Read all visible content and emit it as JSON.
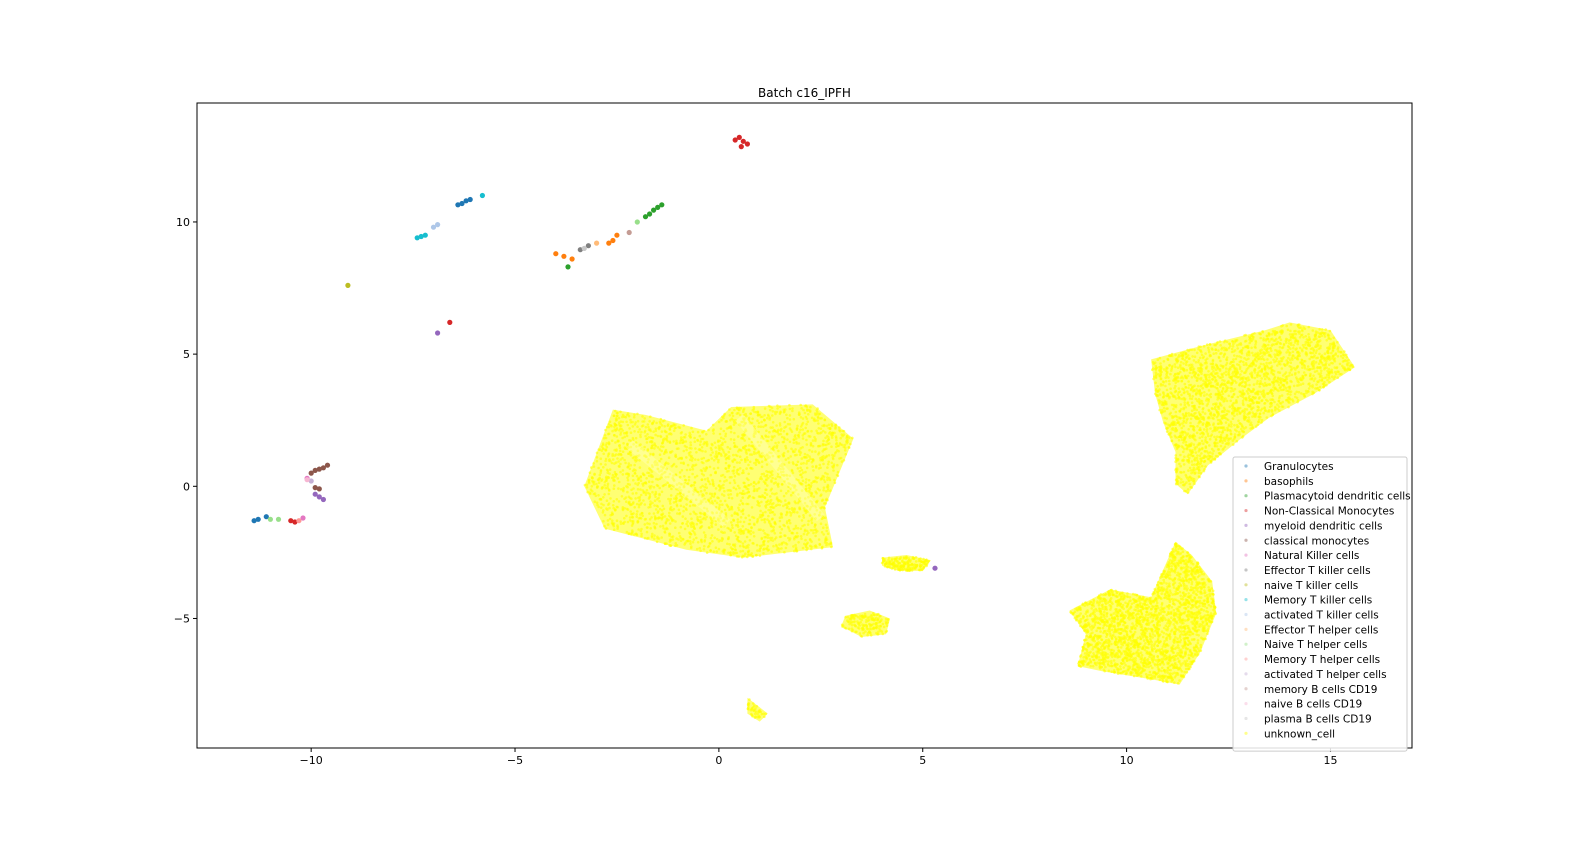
{
  "chart_data": {
    "type": "scatter",
    "title": "Batch c16_IPFH",
    "xlabel": "",
    "ylabel": "",
    "xlim": [
      -12.8,
      17.0
    ],
    "ylim": [
      -9.9,
      14.5
    ],
    "xticks": [
      -10,
      -5,
      0,
      5,
      10,
      15
    ],
    "xtick_labels": [
      "−10",
      "−5",
      "0",
      "5",
      "10",
      "15"
    ],
    "yticks": [
      -5,
      0,
      5,
      10
    ],
    "ytick_labels": [
      "−5",
      "0",
      "5",
      "10"
    ],
    "grid": false,
    "legend_position": "lower right",
    "series": [
      {
        "name": "Granulocytes",
        "color": "#1f77b4",
        "points": [
          [
            -11.4,
            -1.3
          ],
          [
            -11.3,
            -1.25
          ],
          [
            -11.1,
            -1.15
          ],
          [
            -6.4,
            10.65
          ],
          [
            -6.3,
            10.7
          ],
          [
            -6.2,
            10.8
          ],
          [
            -6.1,
            10.85
          ]
        ]
      },
      {
        "name": "basophils",
        "color": "#ff7f0e",
        "points": [
          [
            -4.0,
            8.8
          ],
          [
            -3.8,
            8.7
          ],
          [
            -3.6,
            8.6
          ],
          [
            -2.7,
            9.2
          ],
          [
            -2.6,
            9.3
          ],
          [
            -2.5,
            9.5
          ]
        ]
      },
      {
        "name": "Plasmacytoid dendritic cells",
        "color": "#2ca02c",
        "points": [
          [
            -3.7,
            8.3
          ],
          [
            -1.8,
            10.2
          ],
          [
            -1.7,
            10.3
          ],
          [
            -1.6,
            10.45
          ],
          [
            -1.5,
            10.55
          ],
          [
            -1.4,
            10.65
          ]
        ]
      },
      {
        "name": "Non-Classical Monocytes",
        "color": "#d62728",
        "points": [
          [
            0.4,
            13.1
          ],
          [
            0.5,
            13.2
          ],
          [
            0.6,
            13.05
          ],
          [
            0.7,
            12.95
          ],
          [
            0.55,
            12.85
          ],
          [
            -10.5,
            -1.3
          ],
          [
            -10.4,
            -1.35
          ],
          [
            -6.6,
            6.2
          ]
        ]
      },
      {
        "name": "myeloid dendritic cells",
        "color": "#9467bd",
        "points": [
          [
            -9.9,
            -0.3
          ],
          [
            -9.8,
            -0.4
          ],
          [
            -9.7,
            -0.5
          ],
          [
            -6.9,
            5.8
          ],
          [
            5.3,
            -3.1
          ]
        ]
      },
      {
        "name": "classical monocytes",
        "color": "#8c564b",
        "points": [
          [
            -10.0,
            0.5
          ],
          [
            -9.9,
            0.6
          ],
          [
            -9.8,
            0.65
          ],
          [
            -9.7,
            0.7
          ],
          [
            -9.6,
            0.8
          ],
          [
            -9.8,
            -0.1
          ],
          [
            -9.9,
            -0.05
          ]
        ]
      },
      {
        "name": "Natural Killer cells",
        "color": "#e377c2",
        "points": [
          [
            -10.1,
            0.3
          ],
          [
            -10.2,
            -1.2
          ]
        ]
      },
      {
        "name": "Effector T killer cells",
        "color": "#7f7f7f",
        "points": [
          [
            -3.4,
            8.95
          ],
          [
            -3.2,
            9.1
          ]
        ]
      },
      {
        "name": "naive T killer cells",
        "color": "#bcbd22",
        "points": [
          [
            -9.1,
            7.6
          ]
        ]
      },
      {
        "name": "Memory T killer cells",
        "color": "#17becf",
        "points": [
          [
            -7.4,
            9.4
          ],
          [
            -7.3,
            9.45
          ],
          [
            -7.2,
            9.5
          ],
          [
            -5.8,
            11.0
          ]
        ]
      },
      {
        "name": "activated T killer cells",
        "color": "#aec7e8",
        "points": [
          [
            -7.0,
            9.8
          ],
          [
            -6.9,
            9.9
          ]
        ]
      },
      {
        "name": "Effector T helper cells",
        "color": "#ffbb78",
        "points": [
          [
            -3.0,
            9.2
          ]
        ]
      },
      {
        "name": "Naive T helper cells",
        "color": "#98df8a",
        "points": [
          [
            -11.0,
            -1.25
          ],
          [
            -10.8,
            -1.25
          ],
          [
            -2.0,
            10.0
          ]
        ]
      },
      {
        "name": "Memory T helper cells",
        "color": "#ff9896",
        "points": [
          [
            -10.3,
            -1.3
          ]
        ]
      },
      {
        "name": "activated T helper cells",
        "color": "#c5b0d5",
        "points": [
          [
            -10.0,
            0.2
          ]
        ]
      },
      {
        "name": "memory B cells CD19",
        "color": "#c49c94",
        "points": [
          [
            -2.2,
            9.6
          ]
        ]
      },
      {
        "name": "naive B cells CD19",
        "color": "#f7b6d2",
        "points": [
          [
            -10.1,
            0.25
          ]
        ]
      },
      {
        "name": "plasma B cells CD19",
        "color": "#c7c7c7",
        "points": [
          [
            -3.3,
            9.0
          ]
        ]
      },
      {
        "name": "unknown_cell",
        "color": "#ffff00",
        "points": [],
        "clusters_note": ""
      }
    ]
  },
  "legend": {
    "items": [
      {
        "label": "Granulocytes",
        "color": "#1f77b4"
      },
      {
        "label": "basophils",
        "color": "#ff7f0e"
      },
      {
        "label": "Plasmacytoid dendritic cells",
        "color": "#2ca02c"
      },
      {
        "label": "Non-Classical Monocytes",
        "color": "#d62728"
      },
      {
        "label": "myeloid dendritic cells",
        "color": "#9467bd"
      },
      {
        "label": "classical monocytes",
        "color": "#8c564b"
      },
      {
        "label": "Natural Killer cells",
        "color": "#e377c2"
      },
      {
        "label": "Effector T killer cells",
        "color": "#7f7f7f"
      },
      {
        "label": "naive T killer cells",
        "color": "#bcbd22"
      },
      {
        "label": "Memory T killer cells",
        "color": "#17becf"
      },
      {
        "label": "activated T killer cells",
        "color": "#aec7e8"
      },
      {
        "label": "Effector T helper cells",
        "color": "#ffbb78"
      },
      {
        "label": "Naive T helper cells",
        "color": "#98df8a"
      },
      {
        "label": "Memory T helper cells",
        "color": "#ff9896"
      },
      {
        "label": "activated T helper cells",
        "color": "#c5b0d5"
      },
      {
        "label": "memory B cells CD19",
        "color": "#c49c94"
      },
      {
        "label": "naive B cells CD19",
        "color": "#f7b6d2"
      },
      {
        "label": "plasma B cells CD19",
        "color": "#c7c7c7"
      },
      {
        "label": "unknown_cell",
        "color": "#ffff00"
      }
    ]
  }
}
